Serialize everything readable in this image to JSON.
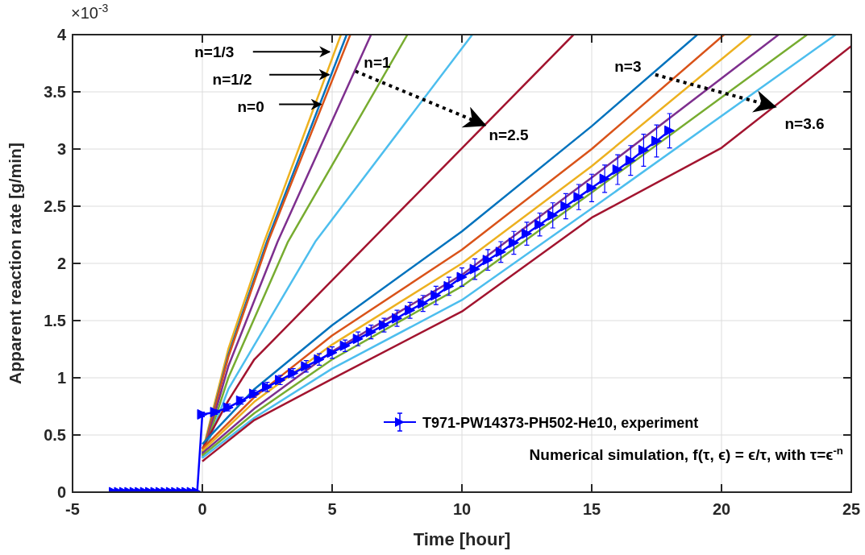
{
  "chart_data": {
    "type": "line",
    "xlabel": "Time [hour]",
    "ylabel": "Apparent reaction rate [g/min]",
    "xlim": [
      -5,
      25
    ],
    "ylim": [
      0,
      4
    ],
    "xticks": [
      -5,
      0,
      5,
      10,
      15,
      20,
      25
    ],
    "yticks": [
      0,
      0.5,
      1,
      1.5,
      2,
      2.5,
      3,
      3.5,
      4
    ],
    "grid": true,
    "legend": "bottom right",
    "annotations": [
      "×10$^{-3}$",
      {
        "text": "n=1/3",
        "x": 4.9,
        "y": 3.85
      },
      {
        "text": "n=1/2",
        "x": 4.88,
        "y": 3.65
      },
      {
        "text": "n=0",
        "x": 4.57,
        "y": 3.39
      },
      {
        "text": "n=1",
        "x": 5.9,
        "y": 3.68
      },
      {
        "text": "n=2.5",
        "x": 10.87,
        "y": 3.21
      },
      {
        "text": "n=3",
        "x": 17.45,
        "y": 3.65
      },
      {
        "text": "n=3.6",
        "x": 22.05,
        "y": 3.37
      },
      "Numerical simulation, f(τ, ϵ) =  ϵ/τ, with τ=ϵ$^{-n}$"
    ],
    "series": [
      {
        "color": "#edb120",
        "x": [
          0,
          1,
          2.4,
          5.34
        ],
        "values": [
          0.35,
          1.25,
          2.2,
          4
        ]
      },
      {
        "color": "#0072bd",
        "x": [
          0,
          1,
          2.5,
          5.56
        ],
        "values": [
          0.33,
          1.2,
          2.2,
          4
        ]
      },
      {
        "color": "#d95319",
        "x": [
          0,
          1,
          2.55,
          5.7
        ],
        "values": [
          0.32,
          1.18,
          2.2,
          4
        ]
      },
      {
        "color": "#7e2f8e",
        "x": [
          0,
          1,
          2.9,
          6.5
        ],
        "values": [
          0.3,
          1.1,
          2.19,
          4
        ]
      },
      {
        "color": "#77ac30",
        "x": [
          0,
          1,
          3.3,
          7.9
        ],
        "values": [
          0.3,
          1.0,
          2.19,
          4
        ]
      },
      {
        "color": "#4dbeee",
        "x": [
          0,
          1,
          4.35,
          10.4
        ],
        "values": [
          0.3,
          0.9,
          2.19,
          4
        ]
      },
      {
        "color": "#a2142f",
        "x": [
          0,
          1,
          2,
          14.3
        ],
        "values": [
          0.38,
          0.8,
          1.16,
          4
        ]
      },
      {
        "color": "#0072bd",
        "x": [
          0,
          2,
          5,
          10,
          15,
          19.07
        ],
        "values": [
          0.42,
          0.9,
          1.46,
          2.28,
          3.2,
          4
        ]
      },
      {
        "color": "#d95319",
        "x": [
          0,
          2,
          5,
          10,
          15,
          20.1
        ],
        "values": [
          0.38,
          0.83,
          1.37,
          2.12,
          3.0,
          4
        ]
      },
      {
        "color": "#edb120",
        "x": [
          0,
          2,
          5,
          10,
          15,
          21.15
        ],
        "values": [
          0.36,
          0.79,
          1.29,
          2.0,
          2.85,
          4
        ]
      },
      {
        "color": "#7e2f8e",
        "x": [
          0,
          2,
          5,
          10,
          15,
          22.2
        ],
        "values": [
          0.34,
          0.73,
          1.23,
          1.9,
          2.75,
          4
        ]
      },
      {
        "color": "#77ac30",
        "x": [
          0,
          2,
          5,
          10,
          15,
          23.3
        ],
        "values": [
          0.32,
          0.69,
          1.16,
          1.8,
          2.62,
          4
        ]
      },
      {
        "color": "#4dbeee",
        "x": [
          0,
          2,
          5,
          10,
          15,
          24.4
        ],
        "values": [
          0.3,
          0.65,
          1.08,
          1.68,
          2.48,
          4
        ]
      },
      {
        "color": "#a2142f",
        "x": [
          0,
          2,
          5,
          10,
          15,
          20,
          25
        ],
        "values": [
          0.27,
          0.63,
          0.99,
          1.58,
          2.4,
          3.01,
          3.9
        ]
      },
      {
        "name": "T971-PW14373-PH502-He10, experiment",
        "color": "#0000ff",
        "marker": "triangle",
        "x": [
          -3.4,
          -3.2,
          -3,
          -2.8,
          -2.6,
          -2.4,
          -2.2,
          -2,
          -1.8,
          -1.6,
          -1.4,
          -1.2,
          -1,
          -0.8,
          -0.6,
          -0.4,
          -0.2,
          0,
          0.5,
          1,
          1.5,
          2,
          2.5,
          3,
          3.5,
          4,
          4.5,
          5,
          5.5,
          6,
          6.5,
          7,
          7.5,
          8,
          8.5,
          9,
          9.5,
          10,
          10.5,
          11,
          11.5,
          12,
          12.5,
          13,
          13.5,
          14,
          14.5,
          15,
          15.5,
          16,
          16.5,
          17,
          17.5,
          18
        ],
        "values": [
          0,
          0,
          0,
          0,
          0,
          0,
          0,
          0,
          0,
          0,
          0,
          0,
          0,
          0,
          0,
          0,
          0,
          0.68,
          0.7,
          0.74,
          0.8,
          0.86,
          0.92,
          0.98,
          1.04,
          1.1,
          1.16,
          1.22,
          1.28,
          1.34,
          1.4,
          1.46,
          1.52,
          1.59,
          1.65,
          1.72,
          1.8,
          1.88,
          1.95,
          2.03,
          2.1,
          2.18,
          2.26,
          2.34,
          2.42,
          2.5,
          2.58,
          2.66,
          2.74,
          2.82,
          2.9,
          2.99,
          3.07,
          3.16
        ],
        "errors": [
          null,
          null,
          null,
          null,
          null,
          null,
          null,
          null,
          null,
          null,
          null,
          null,
          null,
          null,
          null,
          null,
          null,
          0.02,
          0.02,
          0.03,
          0.03,
          0.03,
          0.04,
          0.04,
          0.04,
          0.05,
          0.05,
          0.05,
          0.05,
          0.06,
          0.06,
          0.06,
          0.07,
          0.07,
          0.07,
          0.08,
          0.08,
          0.08,
          0.09,
          0.09,
          0.09,
          0.1,
          0.1,
          0.1,
          0.11,
          0.11,
          0.11,
          0.12,
          0.12,
          0.13,
          0.13,
          0.14,
          0.14,
          0.15
        ]
      }
    ]
  }
}
